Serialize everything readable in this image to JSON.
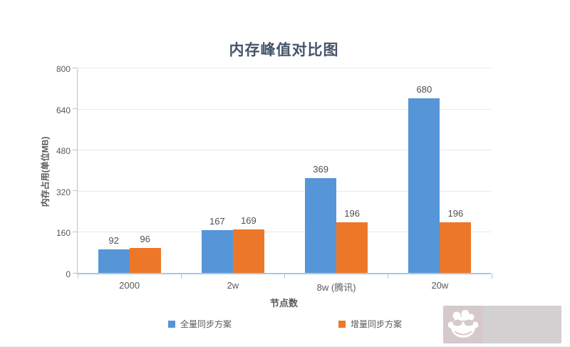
{
  "chart_data": {
    "type": "bar",
    "title": "内存峰值对比图",
    "categories": [
      "2000",
      "2w",
      "8w (腾讯)",
      "20w"
    ],
    "series": [
      {
        "name": "全量同步方案",
        "color": "#5595d8",
        "values": [
          92,
          167,
          369,
          680
        ]
      },
      {
        "name": "增量同步方案",
        "color": "#ed7728",
        "values": [
          96,
          169,
          196,
          196
        ]
      }
    ],
    "xlabel": "节点数",
    "ylabel": "内存占用(单位MB)",
    "ylim": [
      0,
      800
    ],
    "yticks": [
      0,
      160,
      320,
      480,
      640,
      800
    ],
    "grid": true,
    "legend_position": "bottom",
    "axis_color": "#aac7e5",
    "grid_color": "#e8e8e8",
    "label_color": "#595959",
    "title_color": "#44546a"
  },
  "watermark": {
    "icon": "monkey-face-icon"
  }
}
